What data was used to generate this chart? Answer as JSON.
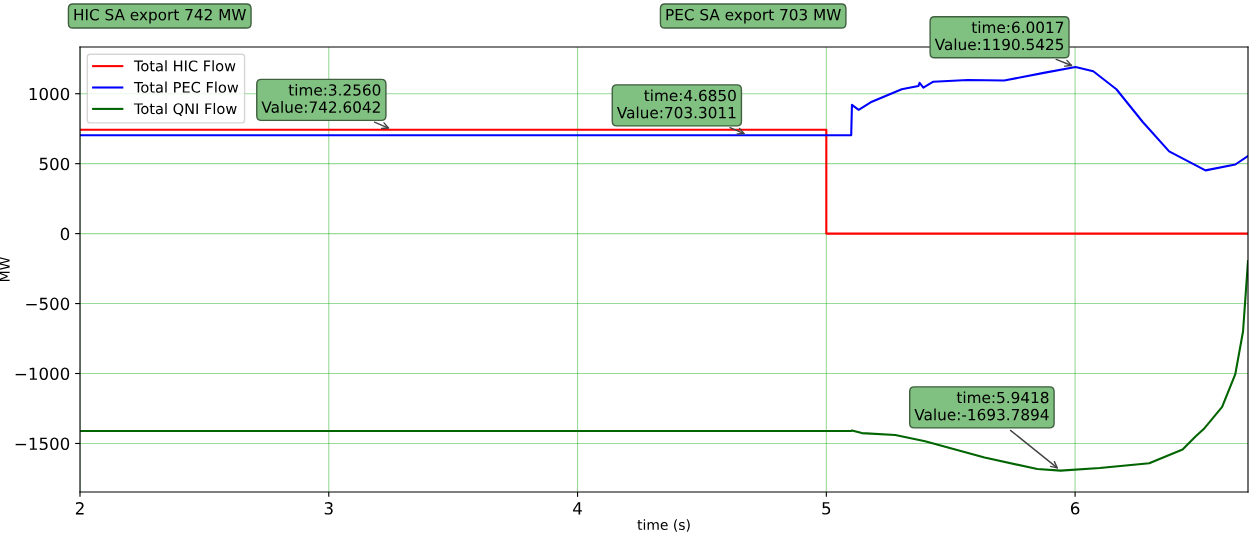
{
  "chart_data": {
    "type": "line",
    "xlabel": "time (s)",
    "ylabel": "MW",
    "xlim": [
      2,
      6.695
    ],
    "ylim": [
      -1847,
      1334
    ],
    "xticks": [
      2,
      3,
      4,
      5,
      6
    ],
    "yticks": [
      {
        "value": -1500,
        "label": "−1500"
      },
      {
        "value": -1000,
        "label": "−1000"
      },
      {
        "value": -500,
        "label": "−500"
      },
      0,
      500,
      1000
    ],
    "grid": true,
    "legend": "top left",
    "line_style": "solid",
    "marker": "none",
    "series": [
      {
        "name": "Total HIC Flow",
        "color": "#ff0000",
        "x": [
          2,
          5.0,
          5.0,
          6.695
        ],
        "values": [
          743,
          743,
          0,
          0
        ]
      },
      {
        "name": "Total PEC Flow",
        "color": "#0000ff",
        "x": [
          2,
          5.1,
          5.103,
          5.13,
          5.183,
          5.303,
          5.37,
          5.375,
          5.39,
          5.43,
          5.569,
          5.715,
          5.874,
          6.0017,
          6.073,
          6.166,
          6.272,
          6.378,
          6.524,
          6.644,
          6.695
        ],
        "values": [
          703,
          703,
          920,
          885,
          943,
          1032,
          1055,
          1078,
          1044,
          1086,
          1098,
          1094,
          1149,
          1191,
          1161,
          1032,
          798,
          588,
          452,
          494,
          555
        ]
      },
      {
        "name": "Total QNI Flow",
        "color": "#006400",
        "x": [
          2,
          5.1,
          5.103,
          5.143,
          5.277,
          5.397,
          5.636,
          5.848,
          5.9418,
          6.099,
          6.298,
          6.432,
          6.485,
          6.517,
          6.591,
          6.644,
          6.675,
          6.695
        ],
        "values": [
          -1411,
          -1411,
          -1407,
          -1426,
          -1440,
          -1484,
          -1601,
          -1683,
          -1694,
          -1676,
          -1641,
          -1543,
          -1449,
          -1397,
          -1238,
          -1004,
          -700,
          -197
        ]
      }
    ],
    "annotations": [
      {
        "text": "time:3.2560\nValue:742.6042",
        "x": 3.256,
        "y": 742.6042
      },
      {
        "text": "time:4.6850\nValue:703.3011",
        "x": 4.685,
        "y": 703.3011
      },
      {
        "text": "time:6.0017\nValue:1190.5425",
        "x": 6.0017,
        "y": 1190.5425
      },
      {
        "text": "time:5.9418\nValue:-1693.7894",
        "x": 5.9418,
        "y": -1693.7894
      },
      "HIC SA export 742 MW",
      "PEC SA export 703 MW"
    ]
  }
}
